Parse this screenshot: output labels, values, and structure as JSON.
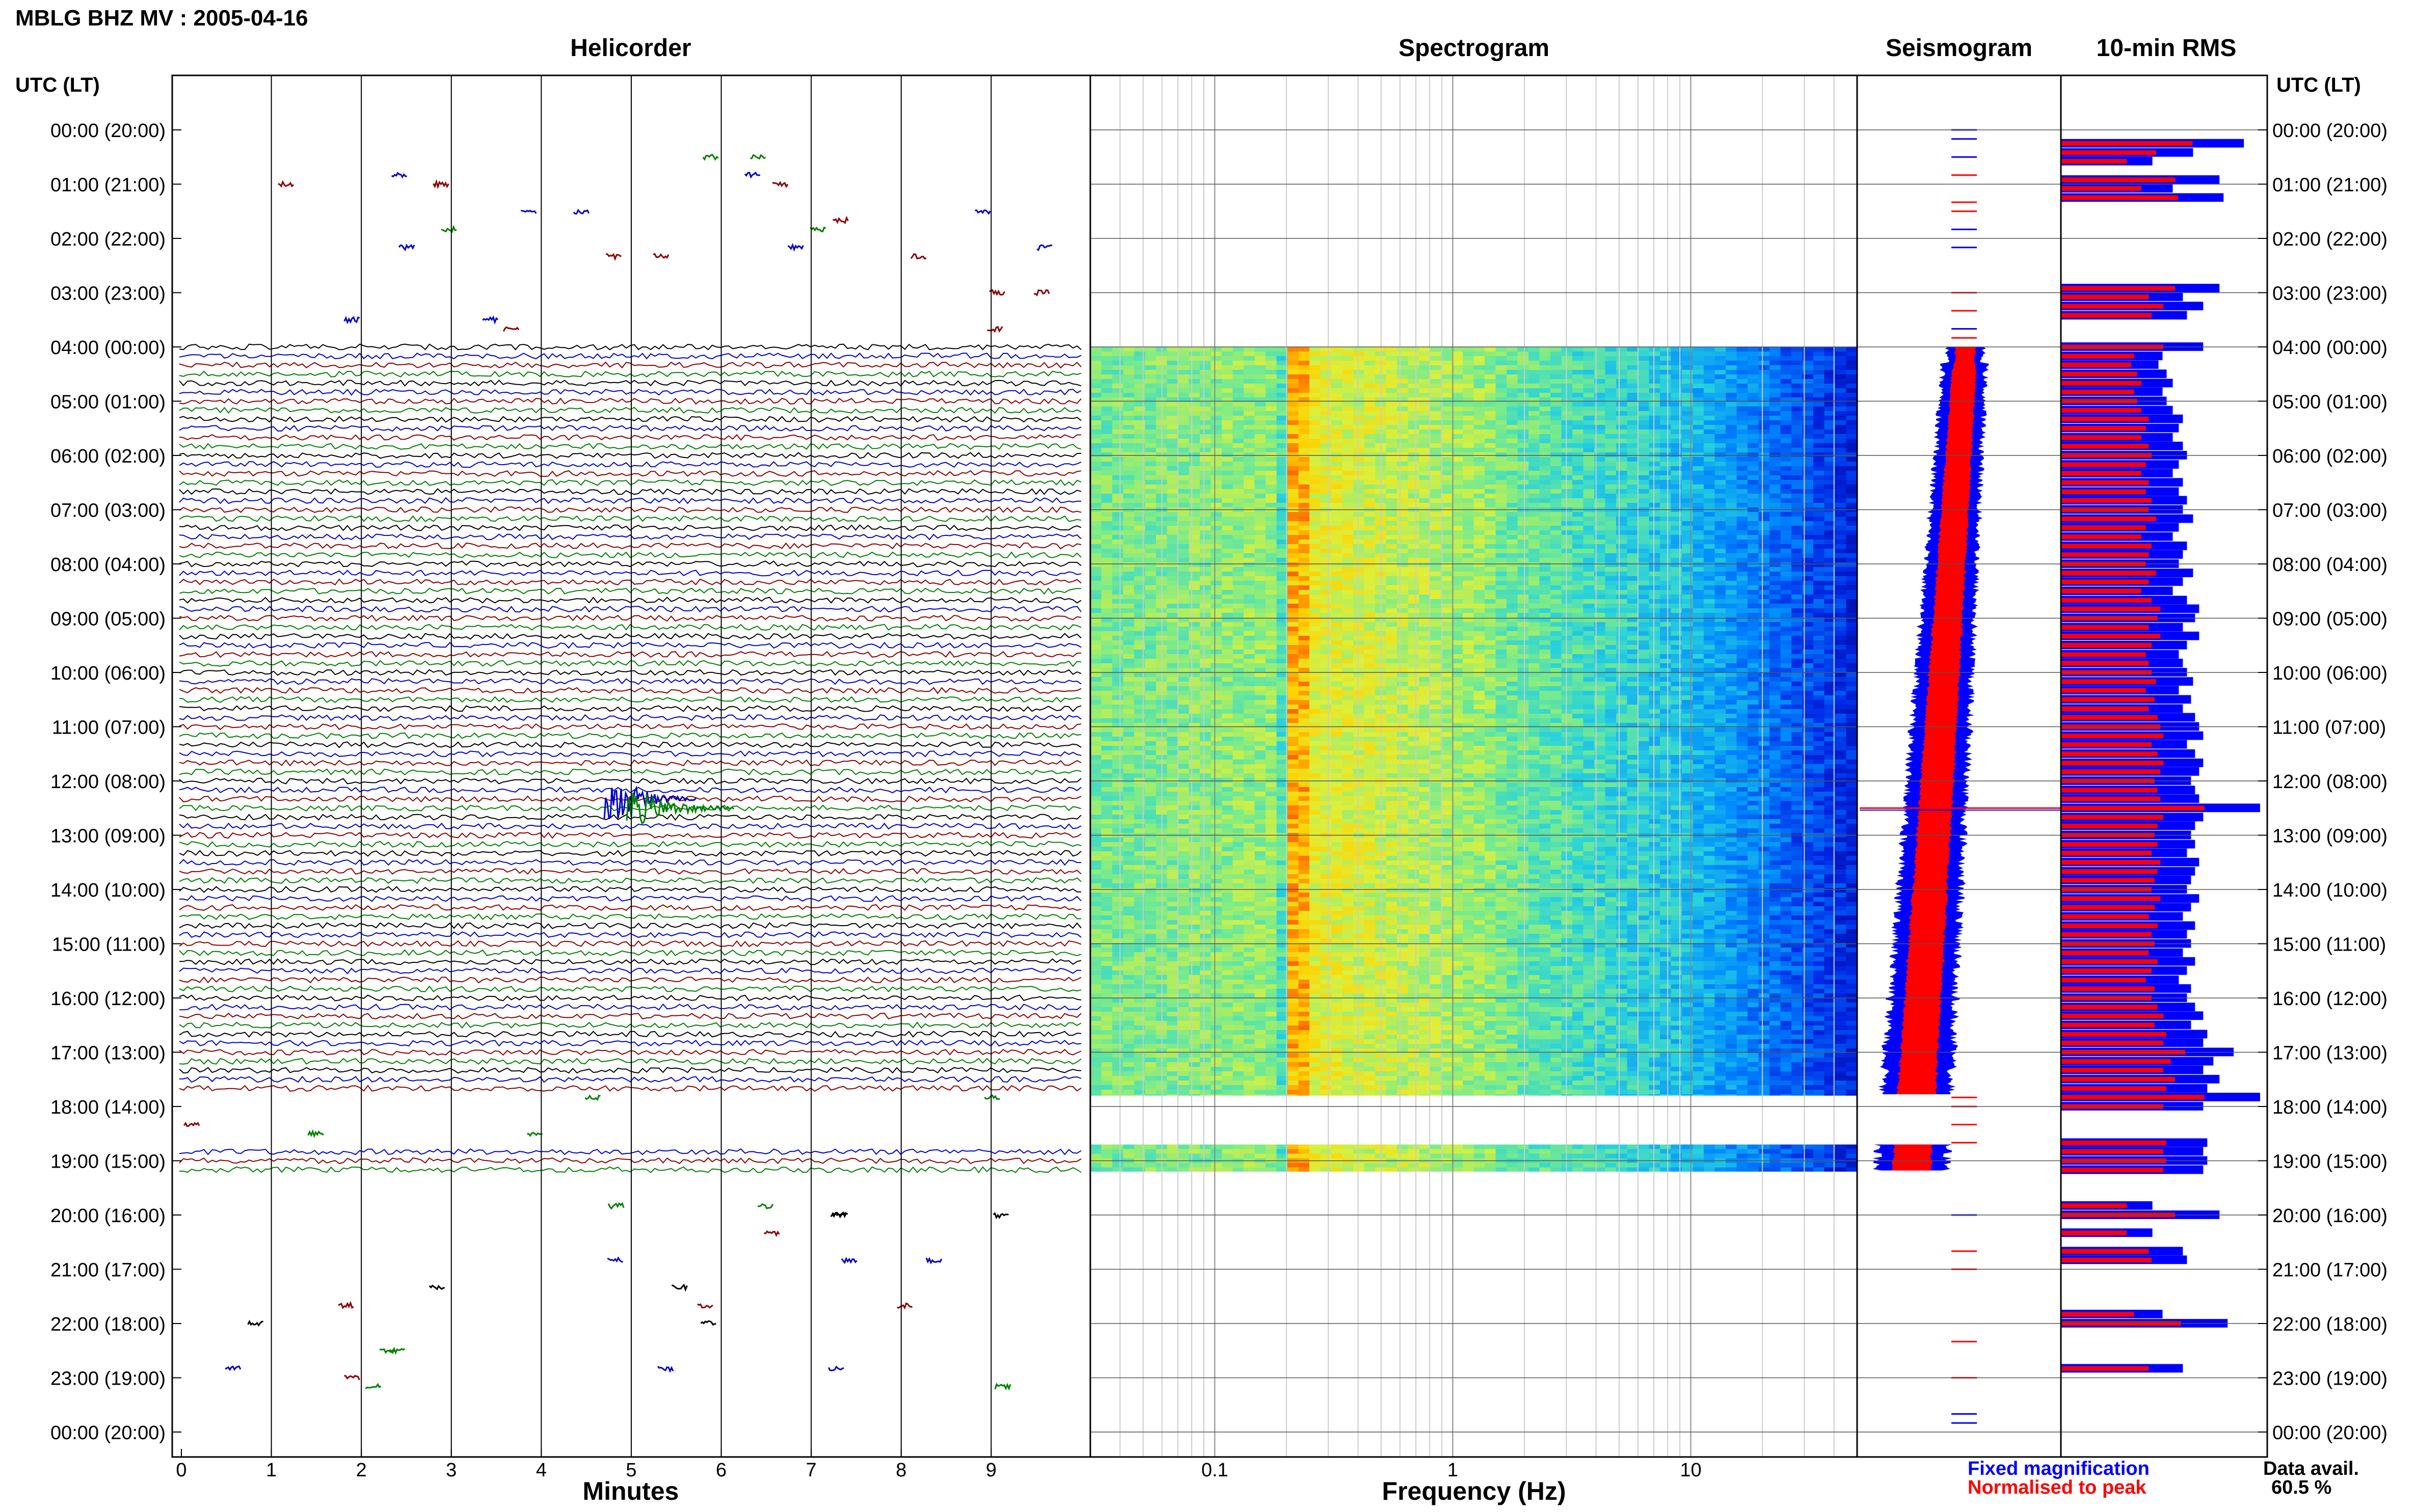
{
  "title": "MBLG BHZ MV : 2005-04-16",
  "panels": {
    "helicorder": "Helicorder",
    "spectrogram": "Spectrogram",
    "seismogram": "Seismogram",
    "rms": "10-min RMS"
  },
  "time_axis_label": "UTC (LT)",
  "time_labels": [
    "00:00 (20:00)",
    "01:00 (21:00)",
    "02:00 (22:00)",
    "03:00 (23:00)",
    "04:00 (00:00)",
    "05:00 (01:00)",
    "06:00 (02:00)",
    "07:00 (03:00)",
    "08:00 (04:00)",
    "09:00 (05:00)",
    "10:00 (06:00)",
    "11:00 (07:00)",
    "12:00 (08:00)",
    "13:00 (09:00)",
    "14:00 (10:00)",
    "15:00 (11:00)",
    "16:00 (12:00)",
    "17:00 (13:00)",
    "18:00 (14:00)",
    "19:00 (15:00)",
    "20:00 (16:00)",
    "21:00 (17:00)",
    "22:00 (18:00)",
    "23:00 (19:00)",
    "00:00 (20:00)"
  ],
  "helicorder_x_ticks": [
    "0",
    "1",
    "2",
    "3",
    "4",
    "5",
    "6",
    "7",
    "8",
    "9"
  ],
  "helicorder_xlabel": "Minutes",
  "spectrogram_x_ticks": [
    "0.1",
    "1",
    "10"
  ],
  "spectrogram_xlabel": "Frequency (Hz)",
  "legend": {
    "fixed": "Fixed magnification",
    "normalised": "Normalised to peak",
    "fixed_color": "#0000ff",
    "normalised_color": "#ff0000"
  },
  "data_avail_label": "Data avail.",
  "data_avail_value": "60.5 %",
  "colors": {
    "trace_cycle": [
      "#000000",
      "#0000cc",
      "#8b0000",
      "#008000"
    ],
    "rms_fixed": "#0000ff",
    "rms_normalised": "#ff0000"
  },
  "chart_data": {
    "type": "heatmap",
    "time_range_hours": [
      0,
      24
    ],
    "helicorder_minutes_range": [
      0,
      10
    ],
    "spectrogram_freq_range_hz": [
      0.03,
      50
    ],
    "spectrogram_scale": "log",
    "continuous_data_hours": [
      [
        4.0,
        17.8
      ],
      [
        18.7,
        19.2
      ]
    ],
    "rms_10min": {
      "note_units": "relative",
      "fixed": [
        [
          0.25,
          0.9
        ],
        [
          0.42,
          0.65
        ],
        [
          0.58,
          0.45
        ],
        [
          0.92,
          0.78
        ],
        [
          1.08,
          0.55
        ],
        [
          1.25,
          0.8
        ],
        [
          2.92,
          0.78
        ],
        [
          3.08,
          0.6
        ],
        [
          3.25,
          0.7
        ],
        [
          3.42,
          0.62
        ],
        [
          4.0,
          0.7
        ],
        [
          4.17,
          0.5
        ],
        [
          4.33,
          0.48
        ],
        [
          4.5,
          0.52
        ],
        [
          4.67,
          0.55
        ],
        [
          4.83,
          0.5
        ],
        [
          5.0,
          0.52
        ],
        [
          5.17,
          0.55
        ],
        [
          5.33,
          0.6
        ],
        [
          5.5,
          0.58
        ],
        [
          5.67,
          0.55
        ],
        [
          5.83,
          0.6
        ],
        [
          6.0,
          0.62
        ],
        [
          6.17,
          0.58
        ],
        [
          6.33,
          0.55
        ],
        [
          6.5,
          0.6
        ],
        [
          6.67,
          0.58
        ],
        [
          6.83,
          0.62
        ],
        [
          7.0,
          0.6
        ],
        [
          7.17,
          0.65
        ],
        [
          7.33,
          0.58
        ],
        [
          7.5,
          0.55
        ],
        [
          7.67,
          0.62
        ],
        [
          7.83,
          0.6
        ],
        [
          8.0,
          0.58
        ],
        [
          8.17,
          0.65
        ],
        [
          8.33,
          0.6
        ],
        [
          8.5,
          0.55
        ],
        [
          8.67,
          0.62
        ],
        [
          8.83,
          0.68
        ],
        [
          9.0,
          0.66
        ],
        [
          9.17,
          0.6
        ],
        [
          9.33,
          0.68
        ],
        [
          9.5,
          0.62
        ],
        [
          9.67,
          0.58
        ],
        [
          9.83,
          0.6
        ],
        [
          10.0,
          0.62
        ],
        [
          10.17,
          0.65
        ],
        [
          10.33,
          0.58
        ],
        [
          10.5,
          0.64
        ],
        [
          10.67,
          0.6
        ],
        [
          10.83,
          0.66
        ],
        [
          11.0,
          0.68
        ],
        [
          11.17,
          0.7
        ],
        [
          11.33,
          0.62
        ],
        [
          11.5,
          0.66
        ],
        [
          11.67,
          0.7
        ],
        [
          11.83,
          0.68
        ],
        [
          12.0,
          0.64
        ],
        [
          12.17,
          0.66
        ],
        [
          12.33,
          0.68
        ],
        [
          12.5,
          0.98
        ],
        [
          12.67,
          0.7
        ],
        [
          12.83,
          0.66
        ],
        [
          13.0,
          0.64
        ],
        [
          13.17,
          0.66
        ],
        [
          13.33,
          0.62
        ],
        [
          13.5,
          0.68
        ],
        [
          13.67,
          0.66
        ],
        [
          13.83,
          0.64
        ],
        [
          14.0,
          0.62
        ],
        [
          14.17,
          0.68
        ],
        [
          14.33,
          0.64
        ],
        [
          14.5,
          0.6
        ],
        [
          14.67,
          0.66
        ],
        [
          14.83,
          0.62
        ],
        [
          15.0,
          0.64
        ],
        [
          15.17,
          0.6
        ],
        [
          15.33,
          0.66
        ],
        [
          15.5,
          0.62
        ],
        [
          15.67,
          0.58
        ],
        [
          15.83,
          0.64
        ],
        [
          16.0,
          0.62
        ],
        [
          16.17,
          0.66
        ],
        [
          16.33,
          0.7
        ],
        [
          16.5,
          0.64
        ],
        [
          16.67,
          0.72
        ],
        [
          16.83,
          0.7
        ],
        [
          17.0,
          0.85
        ],
        [
          17.17,
          0.75
        ],
        [
          17.33,
          0.7
        ],
        [
          17.5,
          0.78
        ],
        [
          17.67,
          0.72
        ],
        [
          17.83,
          0.98
        ],
        [
          18.0,
          0.7
        ],
        [
          18.67,
          0.72
        ],
        [
          18.83,
          0.7
        ],
        [
          19.0,
          0.72
        ],
        [
          19.17,
          0.7
        ],
        [
          19.83,
          0.45
        ],
        [
          20.0,
          0.78
        ],
        [
          20.33,
          0.45
        ],
        [
          20.67,
          0.6
        ],
        [
          20.83,
          0.62
        ],
        [
          21.83,
          0.5
        ],
        [
          22.0,
          0.82
        ],
        [
          22.83,
          0.6
        ]
      ]
    }
  }
}
